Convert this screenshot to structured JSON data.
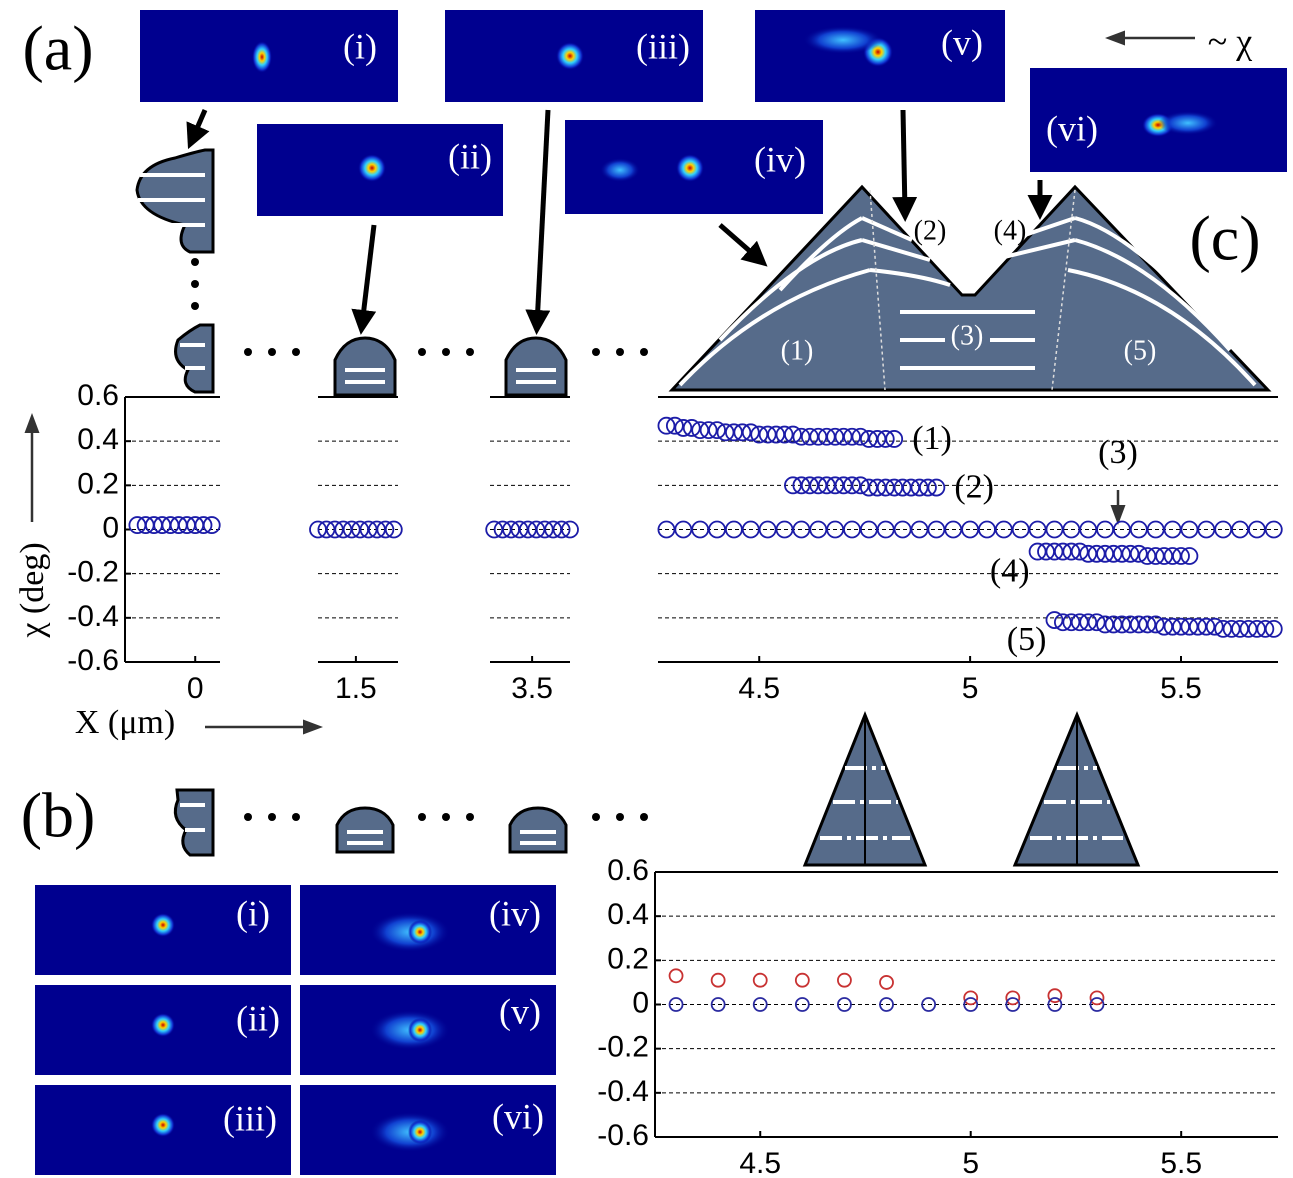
{
  "chart_data": [
    {
      "type": "scatter",
      "ylabel": "χ (deg)",
      "xlabel": "X (μm)",
      "xlim": [
        -0.17,
        0.06
      ],
      "xticks": [
        0
      ],
      "ylim": [
        -0.6,
        0.6
      ],
      "yticks": [
        0.6,
        0.4,
        0.2,
        0,
        -0.2,
        -0.4,
        -0.6
      ],
      "show_ytick_labels": true,
      "grid": true,
      "series": [
        {
          "color": "#1c1ca8",
          "x": [
            -0.14,
            -0.12,
            -0.1,
            -0.08,
            -0.06,
            -0.04,
            -0.02,
            0,
            0.02,
            0.04
          ],
          "values": [
            0.02,
            0.02,
            0.02,
            0.02,
            0.02,
            0.02,
            0.02,
            0.02,
            0.02,
            0.02
          ]
        }
      ]
    },
    {
      "type": "scatter",
      "xlim": [
        1.41,
        1.6
      ],
      "xticks": [
        1.5
      ],
      "ylim": [
        -0.6,
        0.6
      ],
      "yticks": [
        0.6,
        0.4,
        0.2,
        0,
        -0.2,
        -0.4,
        -0.6
      ],
      "show_ytick_labels": false,
      "grid": true,
      "series": [
        {
          "color": "#1c1ca8",
          "x": [
            1.41,
            1.43,
            1.45,
            1.47,
            1.49,
            1.51,
            1.53,
            1.55,
            1.57,
            1.59
          ],
          "values": [
            0,
            0,
            0,
            0,
            0,
            0,
            0,
            0,
            0,
            0
          ]
        }
      ]
    },
    {
      "type": "scatter",
      "xlim": [
        3.4,
        3.59
      ],
      "xticks": [
        3.5
      ],
      "ylim": [
        -0.6,
        0.6
      ],
      "yticks": [
        0.6,
        0.4,
        0.2,
        0,
        -0.2,
        -0.4,
        -0.6
      ],
      "show_ytick_labels": false,
      "grid": true,
      "series": [
        {
          "color": "#1c1ca8",
          "x": [
            3.41,
            3.43,
            3.45,
            3.47,
            3.49,
            3.51,
            3.53,
            3.55,
            3.57,
            3.59
          ],
          "values": [
            0,
            0,
            0,
            0,
            0,
            0,
            0,
            0,
            0,
            0
          ]
        }
      ]
    },
    {
      "type": "scatter",
      "xlim": [
        4.26,
        5.73
      ],
      "xticks": [
        4.5,
        5,
        5.5
      ],
      "ylim": [
        -0.6,
        0.6
      ],
      "yticks": [
        0.6,
        0.4,
        0.2,
        0,
        -0.2,
        -0.4,
        -0.6
      ],
      "show_ytick_labels": false,
      "grid": true,
      "series": [
        {
          "name": "(1)",
          "color": "#1c1ca8",
          "x": [
            4.28,
            4.3,
            4.32,
            4.34,
            4.36,
            4.38,
            4.4,
            4.42,
            4.44,
            4.46,
            4.48,
            4.5,
            4.52,
            4.54,
            4.56,
            4.58,
            4.6,
            4.62,
            4.64,
            4.66,
            4.68,
            4.7,
            4.72,
            4.74,
            4.76,
            4.78,
            4.8,
            4.82
          ],
          "values": [
            0.47,
            0.47,
            0.46,
            0.46,
            0.45,
            0.45,
            0.45,
            0.44,
            0.44,
            0.44,
            0.44,
            0.43,
            0.43,
            0.43,
            0.43,
            0.43,
            0.42,
            0.42,
            0.42,
            0.42,
            0.42,
            0.42,
            0.42,
            0.42,
            0.41,
            0.41,
            0.41,
            0.41
          ]
        },
        {
          "name": "(2)",
          "color": "#1c1ca8",
          "x": [
            4.58,
            4.6,
            4.62,
            4.64,
            4.66,
            4.68,
            4.7,
            4.72,
            4.74,
            4.76,
            4.78,
            4.8,
            4.82,
            4.84,
            4.86,
            4.88,
            4.9,
            4.92
          ],
          "values": [
            0.2,
            0.2,
            0.2,
            0.2,
            0.2,
            0.2,
            0.2,
            0.2,
            0.2,
            0.19,
            0.19,
            0.19,
            0.19,
            0.19,
            0.19,
            0.19,
            0.19,
            0.19
          ]
        },
        {
          "name": "(3)",
          "color": "#1c1ca8",
          "x": [
            4.28,
            4.32,
            4.36,
            4.4,
            4.44,
            4.48,
            4.52,
            4.56,
            4.6,
            4.64,
            4.68,
            4.72,
            4.76,
            4.8,
            4.84,
            4.88,
            4.92,
            4.96,
            5,
            5.04,
            5.08,
            5.12,
            5.16,
            5.2,
            5.24,
            5.28,
            5.32,
            5.36,
            5.4,
            5.44,
            5.48,
            5.52,
            5.56,
            5.6,
            5.64,
            5.68,
            5.72
          ],
          "values": [
            0,
            0,
            0,
            0,
            0,
            0,
            0,
            0,
            0,
            0,
            0,
            0,
            0,
            0,
            0,
            0,
            0,
            0,
            0,
            0,
            0,
            0,
            0,
            0,
            0,
            0,
            0,
            0,
            0,
            0,
            0,
            0,
            0,
            0,
            0,
            0,
            0
          ]
        },
        {
          "name": "(4)",
          "color": "#1c1ca8",
          "x": [
            5.16,
            5.18,
            5.2,
            5.22,
            5.24,
            5.26,
            5.28,
            5.3,
            5.32,
            5.34,
            5.36,
            5.38,
            5.4,
            5.42,
            5.44,
            5.46,
            5.48,
            5.5,
            5.52
          ],
          "values": [
            -0.1,
            -0.1,
            -0.1,
            -0.1,
            -0.1,
            -0.1,
            -0.11,
            -0.11,
            -0.11,
            -0.11,
            -0.11,
            -0.11,
            -0.11,
            -0.12,
            -0.12,
            -0.12,
            -0.12,
            -0.12,
            -0.12
          ]
        },
        {
          "name": "(5)",
          "color": "#1c1ca8",
          "x": [
            5.2,
            5.22,
            5.24,
            5.26,
            5.28,
            5.3,
            5.32,
            5.34,
            5.36,
            5.38,
            5.4,
            5.42,
            5.44,
            5.46,
            5.48,
            5.5,
            5.52,
            5.54,
            5.56,
            5.58,
            5.6,
            5.62,
            5.64,
            5.66,
            5.68,
            5.7,
            5.72
          ],
          "values": [
            -0.41,
            -0.42,
            -0.42,
            -0.42,
            -0.42,
            -0.42,
            -0.43,
            -0.43,
            -0.43,
            -0.43,
            -0.43,
            -0.43,
            -0.43,
            -0.44,
            -0.44,
            -0.44,
            -0.44,
            -0.44,
            -0.44,
            -0.44,
            -0.45,
            -0.45,
            -0.45,
            -0.45,
            -0.45,
            -0.45,
            -0.45
          ]
        }
      ]
    },
    {
      "type": "scatter",
      "xlim": [
        4.25,
        5.73
      ],
      "xticks": [
        4.5,
        5,
        5.5
      ],
      "ylim": [
        -0.6,
        0.6
      ],
      "yticks": [
        0.6,
        0.4,
        0.2,
        0,
        -0.2,
        -0.4,
        -0.6
      ],
      "show_ytick_labels": true,
      "grid": true,
      "series": [
        {
          "color": "#c83232",
          "x": [
            4.3,
            4.4,
            4.5,
            4.6,
            4.7,
            4.8,
            5,
            5.1,
            5.2,
            5.3
          ],
          "values": [
            0.13,
            0.11,
            0.11,
            0.11,
            0.11,
            0.1,
            0.03,
            0.03,
            0.04,
            0.03
          ]
        },
        {
          "color": "#2a2aa0",
          "x": [
            4.3,
            4.4,
            4.5,
            4.6,
            4.7,
            4.8,
            4.9,
            5,
            5.1,
            5.2,
            5.3
          ],
          "values": [
            0,
            0,
            0,
            0,
            0,
            0,
            0,
            0,
            0,
            0,
            0
          ]
        }
      ]
    }
  ],
  "panels": [
    "(a)",
    "(b)",
    "(c)"
  ],
  "images_a": [
    "(i)",
    "(ii)",
    "(iii)",
    "(iv)",
    "(v)",
    "(vi)"
  ],
  "images_b": [
    "(i)",
    "(ii)",
    "(iii)",
    "(iv)",
    "(v)",
    "(vi)"
  ],
  "diagram_labels": [
    "(1)",
    "(2)",
    "(3)",
    "(4)",
    "(5)"
  ],
  "chi_note": "~ χ"
}
